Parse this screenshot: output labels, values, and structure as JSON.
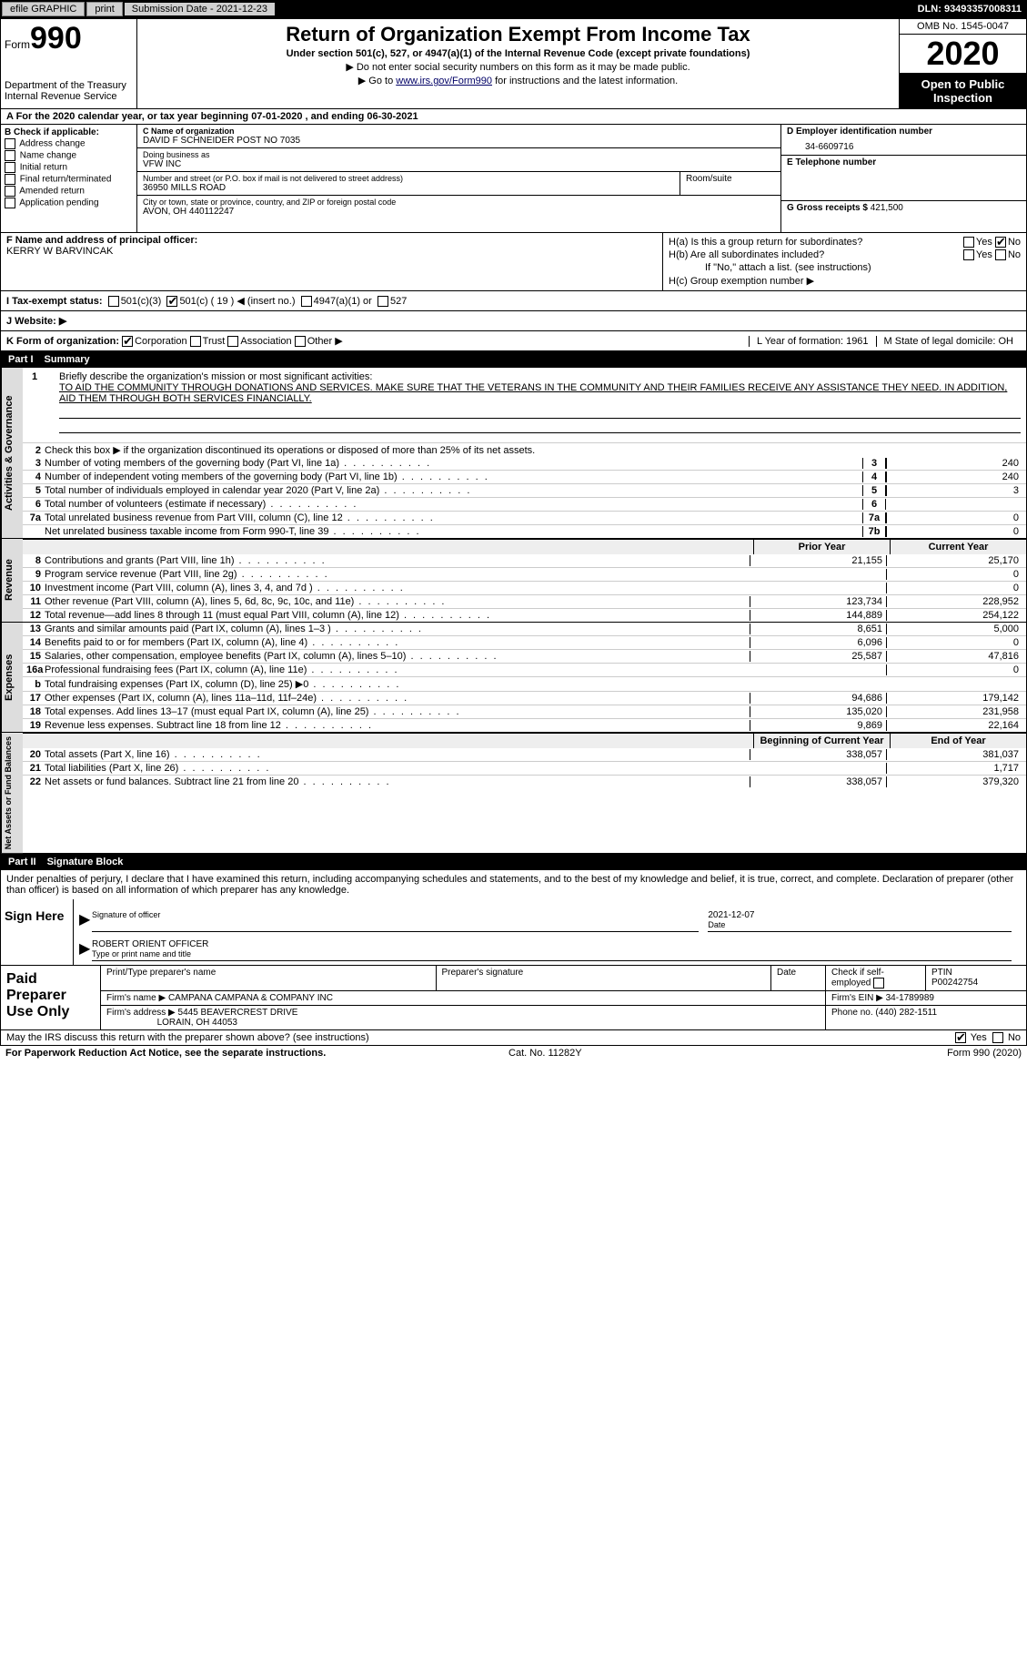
{
  "top": {
    "efile": "efile GRAPHIC",
    "print": "print",
    "submission": "Submission Date - 2021-12-23",
    "dln": "DLN: 93493357008311"
  },
  "header": {
    "form": "Form",
    "formnum": "990",
    "dept": "Department of the Treasury",
    "irs": "Internal Revenue Service",
    "title": "Return of Organization Exempt From Income Tax",
    "sub": "Under section 501(c), 527, or 4947(a)(1) of the Internal Revenue Code (except private foundations)",
    "note1": "▶ Do not enter social security numbers on this form as it may be made public.",
    "note2_pre": "▶ Go to ",
    "note2_link": "www.irs.gov/Form990",
    "note2_post": " for instructions and the latest information.",
    "omb": "OMB No. 1545-0047",
    "year": "2020",
    "open": "Open to Public Inspection"
  },
  "rowA": "A For the 2020 calendar year, or tax year beginning 07-01-2020   , and ending 06-30-2021",
  "B": {
    "head": "B Check if applicable:",
    "opts": [
      "Address change",
      "Name change",
      "Initial return",
      "Final return/terminated",
      "Amended return",
      "Application pending"
    ]
  },
  "C": {
    "name_lbl": "C Name of organization",
    "name": "DAVID F SCHNEIDER POST NO 7035",
    "dba_lbl": "Doing business as",
    "dba": "VFW INC",
    "street_lbl": "Number and street (or P.O. box if mail is not delivered to street address)",
    "street": "36950 MILLS ROAD",
    "room_lbl": "Room/suite",
    "city_lbl": "City or town, state or province, country, and ZIP or foreign postal code",
    "city": "AVON, OH  440112247"
  },
  "D": {
    "ein_lbl": "D Employer identification number",
    "ein": "34-6609716",
    "tel_lbl": "E Telephone number",
    "gross_lbl": "G Gross receipts $",
    "gross": "421,500"
  },
  "F": {
    "lbl": "F  Name and address of principal officer:",
    "name": "KERRY W BARVINCAK"
  },
  "H": {
    "a": "H(a)  Is this a group return for subordinates?",
    "b": "H(b)  Are all subordinates included?",
    "b_note": "If \"No,\" attach a list. (see instructions)",
    "c": "H(c)  Group exemption number ▶"
  },
  "I": {
    "lbl": "I     Tax-exempt status:",
    "c3": "501(c)(3)",
    "c": "501(c) ( 19 ) ◀ (insert no.)",
    "a1": "4947(a)(1) or",
    "s527": "527"
  },
  "J": "J    Website: ▶",
  "K": {
    "lbl": "K Form of organization:",
    "corp": "Corporation",
    "trust": "Trust",
    "assoc": "Association",
    "other": "Other ▶",
    "L": "L Year of formation: 1961",
    "M": "M State of legal domicile: OH"
  },
  "part1": {
    "num": "Part I",
    "title": "Summary"
  },
  "mission": {
    "n": "1",
    "lbl": "Briefly describe the organization's mission or most significant activities:",
    "text": "TO AID THE COMMUNITY THROUGH DONATIONS AND SERVICES. MAKE SURE THAT THE VETERANS IN THE COMMUNITY AND THEIR FAMILIES RECEIVE ANY ASSISTANCE THEY NEED. IN ADDITION, AID THEM THROUGH BOTH SERVICES FINANCIALLY."
  },
  "gov": {
    "side": "Activities & Governance",
    "l2": "Check this box ▶        if the organization discontinued its operations or disposed of more than 25% of its net assets.",
    "rows": [
      {
        "n": "3",
        "d": "Number of voting members of the governing body (Part VI, line 1a)",
        "box": "3",
        "v": "240"
      },
      {
        "n": "4",
        "d": "Number of independent voting members of the governing body (Part VI, line 1b)",
        "box": "4",
        "v": "240"
      },
      {
        "n": "5",
        "d": "Total number of individuals employed in calendar year 2020 (Part V, line 2a)",
        "box": "5",
        "v": "3"
      },
      {
        "n": "6",
        "d": "Total number of volunteers (estimate if necessary)",
        "box": "6",
        "v": ""
      },
      {
        "n": "7a",
        "d": "Total unrelated business revenue from Part VIII, column (C), line 12",
        "box": "7a",
        "v": "0"
      },
      {
        "n": "",
        "d": "Net unrelated business taxable income from Form 990-T, line 39",
        "box": "7b",
        "v": "0"
      }
    ]
  },
  "rev": {
    "side": "Revenue",
    "h1": "Prior Year",
    "h2": "Current Year",
    "rows": [
      {
        "n": "8",
        "d": "Contributions and grants (Part VIII, line 1h)",
        "v1": "21,155",
        "v2": "25,170"
      },
      {
        "n": "9",
        "d": "Program service revenue (Part VIII, line 2g)",
        "v1": "",
        "v2": "0"
      },
      {
        "n": "10",
        "d": "Investment income (Part VIII, column (A), lines 3, 4, and 7d )",
        "v1": "",
        "v2": "0"
      },
      {
        "n": "11",
        "d": "Other revenue (Part VIII, column (A), lines 5, 6d, 8c, 9c, 10c, and 11e)",
        "v1": "123,734",
        "v2": "228,952"
      },
      {
        "n": "12",
        "d": "Total revenue—add lines 8 through 11 (must equal Part VIII, column (A), line 12)",
        "v1": "144,889",
        "v2": "254,122"
      }
    ]
  },
  "exp": {
    "side": "Expenses",
    "rows": [
      {
        "n": "13",
        "d": "Grants and similar amounts paid (Part IX, column (A), lines 1–3 )",
        "v1": "8,651",
        "v2": "5,000"
      },
      {
        "n": "14",
        "d": "Benefits paid to or for members (Part IX, column (A), line 4)",
        "v1": "6,096",
        "v2": "0"
      },
      {
        "n": "15",
        "d": "Salaries, other compensation, employee benefits (Part IX, column (A), lines 5–10)",
        "v1": "25,587",
        "v2": "47,816"
      },
      {
        "n": "16a",
        "d": "Professional fundraising fees (Part IX, column (A), line 11e)",
        "v1": "",
        "v2": "0"
      },
      {
        "n": "b",
        "d": "Total fundraising expenses (Part IX, column (D), line 25) ▶0",
        "v1": "",
        "v2": "",
        "grey": true
      },
      {
        "n": "17",
        "d": "Other expenses (Part IX, column (A), lines 11a–11d, 11f–24e)",
        "v1": "94,686",
        "v2": "179,142"
      },
      {
        "n": "18",
        "d": "Total expenses. Add lines 13–17 (must equal Part IX, column (A), line 25)",
        "v1": "135,020",
        "v2": "231,958"
      },
      {
        "n": "19",
        "d": "Revenue less expenses. Subtract line 18 from line 12",
        "v1": "9,869",
        "v2": "22,164"
      }
    ]
  },
  "net": {
    "side": "Net Assets or Fund Balances",
    "h1": "Beginning of Current Year",
    "h2": "End of Year",
    "rows": [
      {
        "n": "20",
        "d": "Total assets (Part X, line 16)",
        "v1": "338,057",
        "v2": "381,037"
      },
      {
        "n": "21",
        "d": "Total liabilities (Part X, line 26)",
        "v1": "",
        "v2": "1,717"
      },
      {
        "n": "22",
        "d": "Net assets or fund balances. Subtract line 21 from line 20",
        "v1": "338,057",
        "v2": "379,320"
      }
    ]
  },
  "part2": {
    "num": "Part II",
    "title": "Signature Block"
  },
  "sig": {
    "decl": "Under penalties of perjury, I declare that I have examined this return, including accompanying schedules and statements, and to the best of my knowledge and belief, it is true, correct, and complete. Declaration of preparer (other than officer) is based on all information of which preparer has any knowledge.",
    "here": "Sign Here",
    "sig_of": "Signature of officer",
    "date": "Date",
    "dateval": "2021-12-07",
    "name": "ROBERT ORIENT  OFFICER",
    "typecap": "Type or print name and title"
  },
  "paid": {
    "lbl": "Paid Preparer Use Only",
    "h": [
      "Print/Type preparer's name",
      "Preparer's signature",
      "Date",
      "Check       if self-employed",
      "PTIN"
    ],
    "ptin": "P00242754",
    "firm_lbl": "Firm's name   ▶",
    "firm": "CAMPANA CAMPANA & COMPANY INC",
    "ein_lbl": "Firm's EIN ▶",
    "ein": "34-1789989",
    "addr_lbl": "Firm's address ▶",
    "addr1": "5445 BEAVERCREST DRIVE",
    "addr2": "LORAIN, OH  44053",
    "phone_lbl": "Phone no.",
    "phone": "(440) 282-1511"
  },
  "foot": {
    "q": "May the IRS discuss this return with the preparer shown above? (see instructions)",
    "yes": "Yes",
    "no": "No"
  },
  "last": {
    "l": "For Paperwork Reduction Act Notice, see the separate instructions.",
    "m": "Cat. No. 11282Y",
    "r": "Form 990 (2020)"
  },
  "yn": {
    "yes": "Yes",
    "no": "No"
  }
}
